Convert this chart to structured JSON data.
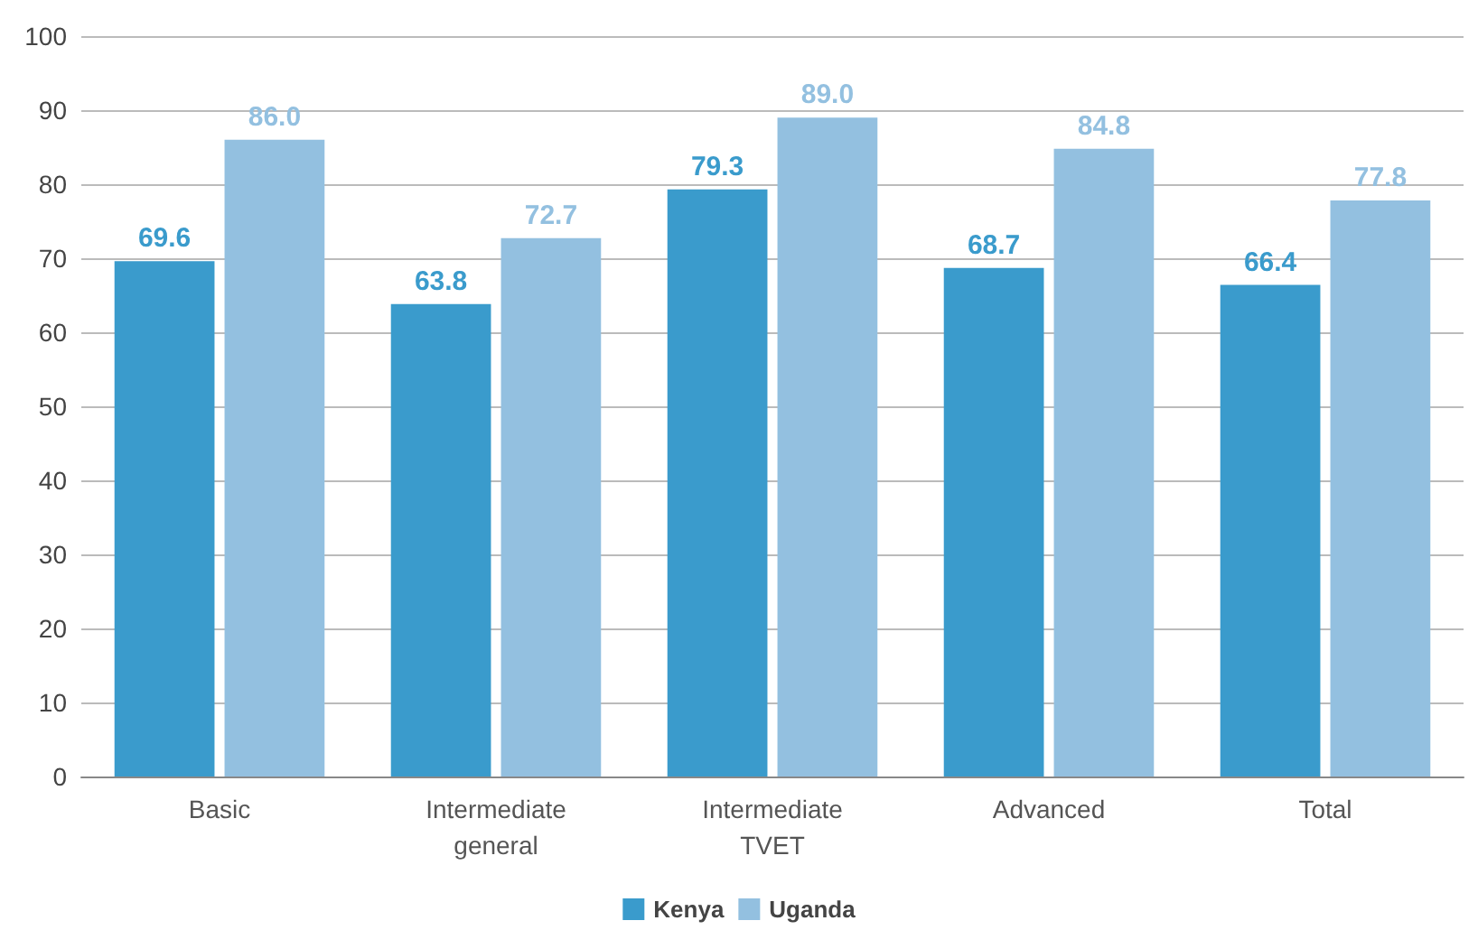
{
  "chart_data": {
    "type": "bar",
    "categories": [
      "Basic",
      "Intermediate\ngeneral",
      "Intermediate\nTVET",
      "Advanced",
      "Total"
    ],
    "series": [
      {
        "name": "Kenya",
        "color": "#3a9bcc",
        "values": [
          69.6,
          63.8,
          79.3,
          68.7,
          66.4
        ]
      },
      {
        "name": "Uganda",
        "color": "#93c0e0",
        "values": [
          86.0,
          72.7,
          89.0,
          84.8,
          77.8
        ]
      }
    ],
    "value_labels": [
      [
        "69.6",
        "63.8",
        "79.3",
        "68.7",
        "66.4"
      ],
      [
        "86.0",
        "72.7",
        "89.0",
        "84.8",
        "77.8"
      ]
    ],
    "ylim": [
      0,
      100
    ],
    "yticks": [
      0,
      10,
      20,
      30,
      40,
      50,
      60,
      70,
      80,
      90,
      100
    ],
    "grid": "y",
    "legend": "bottom"
  }
}
